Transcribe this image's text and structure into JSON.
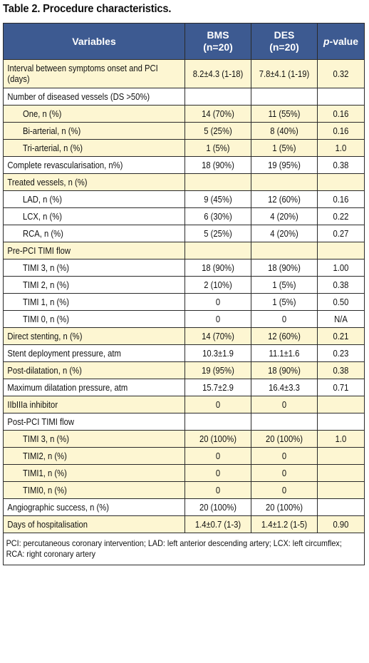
{
  "title": "Table 2. Procedure characteristics.",
  "header": {
    "variables": "Variables",
    "bms_line1": "BMS",
    "bms_line2": "(n=20)",
    "des_line1": "DES",
    "des_line2": "(n=20)",
    "pvalue_italic": "p",
    "pvalue_rest": "-value"
  },
  "rows": [
    {
      "label": "Interval between symptoms onset and PCI (days)",
      "bms": "8.2±4.3 (1-18)",
      "des": "7.8±4.1 (1-19)",
      "p": "0.32"
    },
    {
      "label": "Number of diseased vessels (DS >50%)",
      "bms": "",
      "des": "",
      "p": ""
    },
    {
      "label": "One, n (%)",
      "bms": "14 (70%)",
      "des": "11 (55%)",
      "p": "0.16"
    },
    {
      "label": "Bi-arterial, n (%)",
      "bms": "5 (25%)",
      "des": "8 (40%)",
      "p": "0.16"
    },
    {
      "label": "Tri-arterial, n (%)",
      "bms": "1 (5%)",
      "des": "1 (5%)",
      "p": "1.0"
    },
    {
      "label": "Complete revascularisation, n%)",
      "bms": "18 (90%)",
      "des": "19 (95%)",
      "p": "0.38"
    },
    {
      "label": "Treated vessels, n (%)",
      "bms": "",
      "des": "",
      "p": ""
    },
    {
      "label": "LAD, n (%)",
      "bms": "9 (45%)",
      "des": "12 (60%)",
      "p": "0.16"
    },
    {
      "label": "LCX, n (%)",
      "bms": "6 (30%)",
      "des": "4 (20%)",
      "p": "0.22"
    },
    {
      "label": "RCA, n (%)",
      "bms": "5 (25%)",
      "des": "4 (20%)",
      "p": "0.27"
    },
    {
      "label": "Pre-PCI TIMI flow",
      "bms": "",
      "des": "",
      "p": ""
    },
    {
      "label": "TIMI 3, n (%)",
      "bms": "18 (90%)",
      "des": "18 (90%)",
      "p": "1.00"
    },
    {
      "label": "TIMI 2, n (%)",
      "bms": "2 (10%)",
      "des": "1 (5%)",
      "p": "0.38"
    },
    {
      "label": "TIMI 1, n (%)",
      "bms": "0",
      "des": "1 (5%)",
      "p": "0.50"
    },
    {
      "label": "TIMI 0, n (%)",
      "bms": "0",
      "des": "0",
      "p": "N/A"
    },
    {
      "label": "Direct stenting, n (%)",
      "bms": "14 (70%)",
      "des": "12 (60%)",
      "p": "0.21"
    },
    {
      "label": "Stent deployment pressure, atm",
      "bms": "10.3±1.9",
      "des": "11.1±1.6",
      "p": "0.23"
    },
    {
      "label": "Post-dilatation, n (%)",
      "bms": "19 (95%)",
      "des": "18 (90%)",
      "p": "0.38"
    },
    {
      "label": "Maximum dilatation pressure, atm",
      "bms": "15.7±2.9",
      "des": "16.4±3.3",
      "p": "0.71"
    },
    {
      "label": "IIbIIIa inhibitor",
      "bms": "0",
      "des": "0",
      "p": ""
    },
    {
      "label": "Post-PCI TIMI flow",
      "bms": "",
      "des": "",
      "p": ""
    },
    {
      "label": "TIMI 3, n (%)",
      "bms": "20 (100%)",
      "des": "20 (100%)",
      "p": "1.0"
    },
    {
      "label": "TIMI2, n (%)",
      "bms": "0",
      "des": "0",
      "p": ""
    },
    {
      "label": "TIMI1, n (%)",
      "bms": "0",
      "des": "0",
      "p": ""
    },
    {
      "label": "TIMI0, n (%)",
      "bms": "0",
      "des": "0",
      "p": ""
    },
    {
      "label": "Angiographic success, n (%)",
      "bms": "20 (100%)",
      "des": "20 (100%)",
      "p": ""
    },
    {
      "label": "Days of hospitalisation",
      "bms": "1.4±0.7 (1-3)",
      "des": "1.4±1.2 (1-5)",
      "p": "0.90"
    }
  ],
  "footnote": "PCI: percutaneous coronary intervention; LAD: left anterior descending artery; LCX: left circumflex; RCA: right coronary artery",
  "colors": {
    "header_bg": "#3d5a91",
    "header_text": "#ffffff",
    "row_shade": "#fdf6d2",
    "border": "#2a2a2a"
  }
}
